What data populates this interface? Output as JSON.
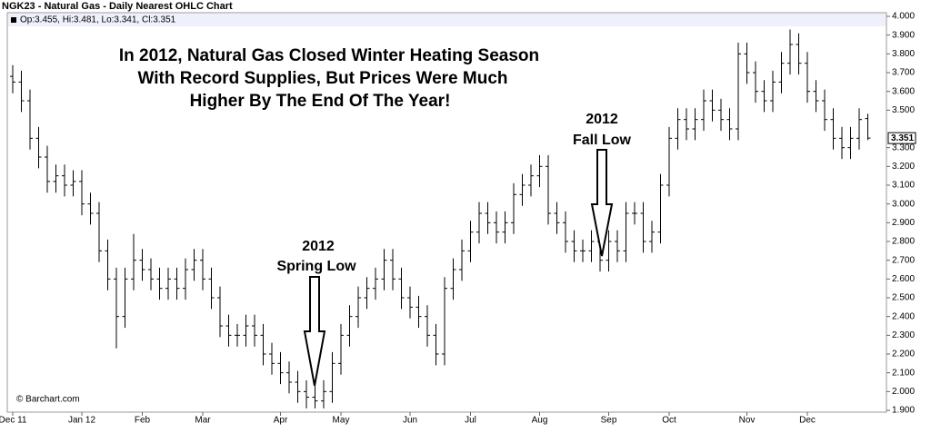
{
  "chart_data": {
    "type": "ohlc",
    "title": "NGK23 - Natural Gas - Daily Nearest OHLC Chart",
    "legend_text": "Op:3.455, Hi:3.481, Lo:3.341, Cl:3.351",
    "headline": [
      "In 2012, Natural Gas Closed Winter Heating Season",
      "With Record Supplies, But Prices Were Much",
      "Higher By The End Of The Year!"
    ],
    "annotations": [
      {
        "lines": [
          "2012",
          "Spring Low"
        ]
      },
      {
        "lines": [
          "2012",
          "Fall Low"
        ]
      }
    ],
    "credit": "© Barchart.com",
    "color": "#000000",
    "categories": [
      "Dec 11",
      null,
      null,
      null,
      null,
      null,
      null,
      null,
      "Jan 12",
      null,
      null,
      null,
      null,
      null,
      null,
      "Feb",
      null,
      null,
      null,
      null,
      null,
      null,
      "Mar",
      null,
      null,
      null,
      null,
      null,
      null,
      null,
      null,
      "Apr",
      null,
      null,
      null,
      null,
      null,
      null,
      "May",
      null,
      null,
      null,
      null,
      null,
      null,
      null,
      "Jun",
      null,
      null,
      null,
      null,
      null,
      null,
      "Jul",
      null,
      null,
      null,
      null,
      null,
      null,
      null,
      "Aug",
      null,
      null,
      null,
      null,
      null,
      null,
      null,
      "Sep",
      null,
      null,
      null,
      null,
      null,
      null,
      "Oct",
      null,
      null,
      null,
      null,
      null,
      null,
      null,
      null,
      "Nov",
      null,
      null,
      null,
      null,
      null,
      null,
      "Dec",
      null,
      null,
      null,
      null,
      null,
      null,
      null
    ],
    "open": [
      3.68,
      3.65,
      3.55,
      3.35,
      3.25,
      3.12,
      3.15,
      3.1,
      3.12,
      3.0,
      2.95,
      2.75,
      2.6,
      2.4,
      2.6,
      2.7,
      2.65,
      2.6,
      2.55,
      2.6,
      2.55,
      2.65,
      2.7,
      2.6,
      2.5,
      2.35,
      2.3,
      2.3,
      2.35,
      2.3,
      2.2,
      2.15,
      2.1,
      2.05,
      2.0,
      1.97,
      1.95,
      2.0,
      2.15,
      2.3,
      2.4,
      2.5,
      2.55,
      2.6,
      2.7,
      2.6,
      2.5,
      2.45,
      2.4,
      2.3,
      2.2,
      2.55,
      2.65,
      2.75,
      2.85,
      2.95,
      2.9,
      2.85,
      2.9,
      3.05,
      3.1,
      3.15,
      3.2,
      2.95,
      2.9,
      2.8,
      2.75,
      2.75,
      2.8,
      2.7,
      2.8,
      2.75,
      2.95,
      2.95,
      2.8,
      2.85,
      3.1,
      3.35,
      3.45,
      3.4,
      3.45,
      3.55,
      3.5,
      3.45,
      3.4,
      3.8,
      3.7,
      3.6,
      3.55,
      3.65,
      3.75,
      3.85,
      3.75,
      3.6,
      3.55,
      3.45,
      3.35,
      3.3,
      3.35,
      3.455
    ],
    "high": [
      3.74,
      3.71,
      3.61,
      3.41,
      3.31,
      3.21,
      3.21,
      3.18,
      3.18,
      3.06,
      3.01,
      2.81,
      2.66,
      2.66,
      2.84,
      2.76,
      2.71,
      2.66,
      2.66,
      2.66,
      2.71,
      2.76,
      2.76,
      2.66,
      2.56,
      2.41,
      2.36,
      2.41,
      2.41,
      2.36,
      2.26,
      2.21,
      2.16,
      2.11,
      2.06,
      2.03,
      2.06,
      2.21,
      2.36,
      2.46,
      2.56,
      2.61,
      2.66,
      2.76,
      2.76,
      2.66,
      2.56,
      2.51,
      2.46,
      2.36,
      2.61,
      2.71,
      2.81,
      2.91,
      3.01,
      3.01,
      2.96,
      2.96,
      3.11,
      3.16,
      3.21,
      3.26,
      3.26,
      3.01,
      2.96,
      2.86,
      2.81,
      2.86,
      2.86,
      2.86,
      2.86,
      3.01,
      3.01,
      3.01,
      2.91,
      3.16,
      3.41,
      3.51,
      3.51,
      3.51,
      3.61,
      3.61,
      3.56,
      3.51,
      3.86,
      3.86,
      3.76,
      3.66,
      3.71,
      3.81,
      3.93,
      3.91,
      3.81,
      3.66,
      3.61,
      3.51,
      3.41,
      3.41,
      3.51,
      3.481
    ],
    "low": [
      3.59,
      3.49,
      3.29,
      3.19,
      3.06,
      3.06,
      3.04,
      3.04,
      2.94,
      2.89,
      2.69,
      2.54,
      2.23,
      2.34,
      2.54,
      2.59,
      2.54,
      2.49,
      2.49,
      2.49,
      2.49,
      2.59,
      2.54,
      2.44,
      2.29,
      2.24,
      2.24,
      2.24,
      2.24,
      2.14,
      2.09,
      2.04,
      1.99,
      1.94,
      1.91,
      1.91,
      1.91,
      1.94,
      2.09,
      2.24,
      2.34,
      2.44,
      2.49,
      2.54,
      2.54,
      2.44,
      2.39,
      2.34,
      2.24,
      2.14,
      2.14,
      2.49,
      2.59,
      2.69,
      2.79,
      2.84,
      2.79,
      2.79,
      2.84,
      2.99,
      3.04,
      3.09,
      2.89,
      2.84,
      2.74,
      2.69,
      2.69,
      2.69,
      2.64,
      2.64,
      2.69,
      2.69,
      2.89,
      2.74,
      2.74,
      2.79,
      3.04,
      3.29,
      3.34,
      3.34,
      3.39,
      3.44,
      3.39,
      3.34,
      3.34,
      3.64,
      3.54,
      3.49,
      3.49,
      3.59,
      3.69,
      3.69,
      3.54,
      3.49,
      3.39,
      3.29,
      3.24,
      3.24,
      3.29,
      3.341
    ],
    "close": [
      3.65,
      3.55,
      3.35,
      3.25,
      3.12,
      3.15,
      3.1,
      3.12,
      3.0,
      2.95,
      2.75,
      2.6,
      2.4,
      2.6,
      2.7,
      2.65,
      2.6,
      2.55,
      2.6,
      2.55,
      2.65,
      2.7,
      2.6,
      2.5,
      2.35,
      2.3,
      2.3,
      2.35,
      2.3,
      2.2,
      2.15,
      2.1,
      2.05,
      2.0,
      1.97,
      1.95,
      2.0,
      2.15,
      2.3,
      2.4,
      2.5,
      2.55,
      2.6,
      2.7,
      2.6,
      2.5,
      2.45,
      2.4,
      2.3,
      2.2,
      2.55,
      2.65,
      2.75,
      2.85,
      2.95,
      2.9,
      2.85,
      2.9,
      3.05,
      3.1,
      3.15,
      3.2,
      2.95,
      2.9,
      2.8,
      2.75,
      2.75,
      2.8,
      2.7,
      2.8,
      2.75,
      2.95,
      2.95,
      2.8,
      2.85,
      3.1,
      3.35,
      3.45,
      3.4,
      3.45,
      3.55,
      3.5,
      3.45,
      3.4,
      3.8,
      3.7,
      3.6,
      3.55,
      3.65,
      3.75,
      3.85,
      3.75,
      3.6,
      3.55,
      3.45,
      3.35,
      3.3,
      3.35,
      3.45,
      3.351
    ],
    "ylim": [
      1.9,
      4.0
    ],
    "yticks": [
      {
        "value": 1.9,
        "label": "1.900"
      },
      {
        "value": 2.0,
        "label": "2.000"
      },
      {
        "value": 2.1,
        "label": "2.100"
      },
      {
        "value": 2.2,
        "label": "2.200"
      },
      {
        "value": 2.3,
        "label": "2.300"
      },
      {
        "value": 2.4,
        "label": "2.400"
      },
      {
        "value": 2.5,
        "label": "2.500"
      },
      {
        "value": 2.6,
        "label": "2.600"
      },
      {
        "value": 2.7,
        "label": "2.700"
      },
      {
        "value": 2.8,
        "label": "2.800"
      },
      {
        "value": 2.9,
        "label": "2.900"
      },
      {
        "value": 3.0,
        "label": "3.000"
      },
      {
        "value": 3.1,
        "label": "3.100"
      },
      {
        "value": 3.2,
        "label": "3.200"
      },
      {
        "value": 3.3,
        "label": "3.300"
      },
      {
        "value": 3.5,
        "label": "3.500"
      },
      {
        "value": 3.6,
        "label": "3.600"
      },
      {
        "value": 3.7,
        "label": "3.700"
      },
      {
        "value": 3.8,
        "label": "3.800"
      },
      {
        "value": 3.9,
        "label": "3.900"
      },
      {
        "value": 4.0,
        "label": "4.000"
      }
    ],
    "grid": false,
    "axis_side": "right"
  }
}
